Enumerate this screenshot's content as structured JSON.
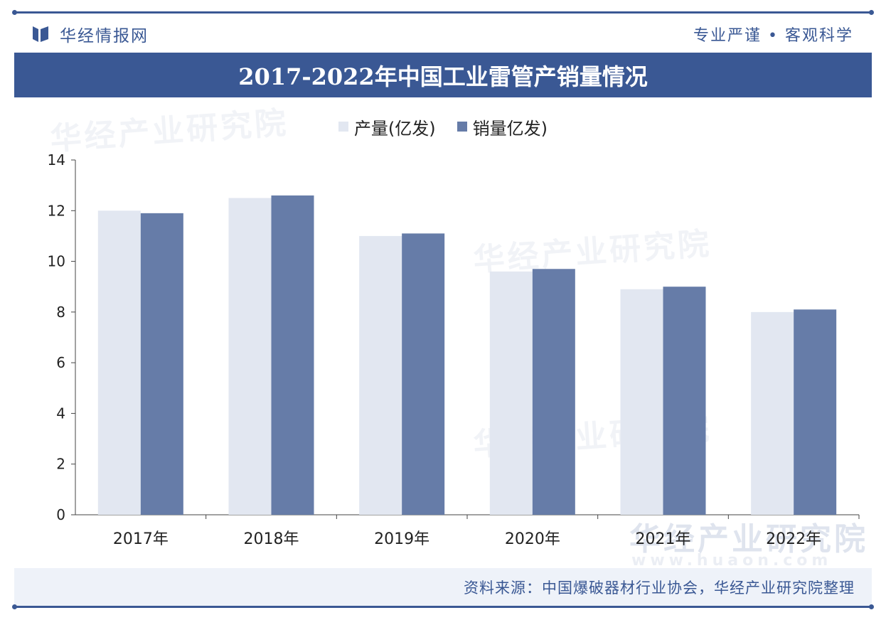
{
  "header": {
    "brand_name": "华经情报网",
    "slogan": "专业严谨 • 客观科学"
  },
  "watermark": {
    "text": "华经产业研究院",
    "url": "www.huaon.com"
  },
  "footer": {
    "source": "资料来源：中国爆破器材行业协会，华经产业研究院整理"
  },
  "colors": {
    "brand": "#3a5894",
    "production": "#e2e7f1",
    "sales": "#667ca8"
  },
  "chart_data": {
    "type": "bar",
    "title": "2017-2022年中国工业雷管产销量情况",
    "categories": [
      "2017年",
      "2018年",
      "2019年",
      "2020年",
      "2021年",
      "2022年"
    ],
    "series": [
      {
        "name": "产量(亿发)",
        "values": [
          12.0,
          12.5,
          11.0,
          9.6,
          8.9,
          8.0
        ]
      },
      {
        "name": "销量亿发)",
        "values": [
          11.9,
          12.6,
          11.1,
          9.7,
          9.0,
          8.1
        ]
      }
    ],
    "yticks": [
      0,
      2,
      4,
      6,
      8,
      10,
      12,
      14
    ],
    "ylim": [
      0,
      14
    ],
    "xlabel": "",
    "ylabel": "",
    "grid": false,
    "legend": "top-center"
  }
}
